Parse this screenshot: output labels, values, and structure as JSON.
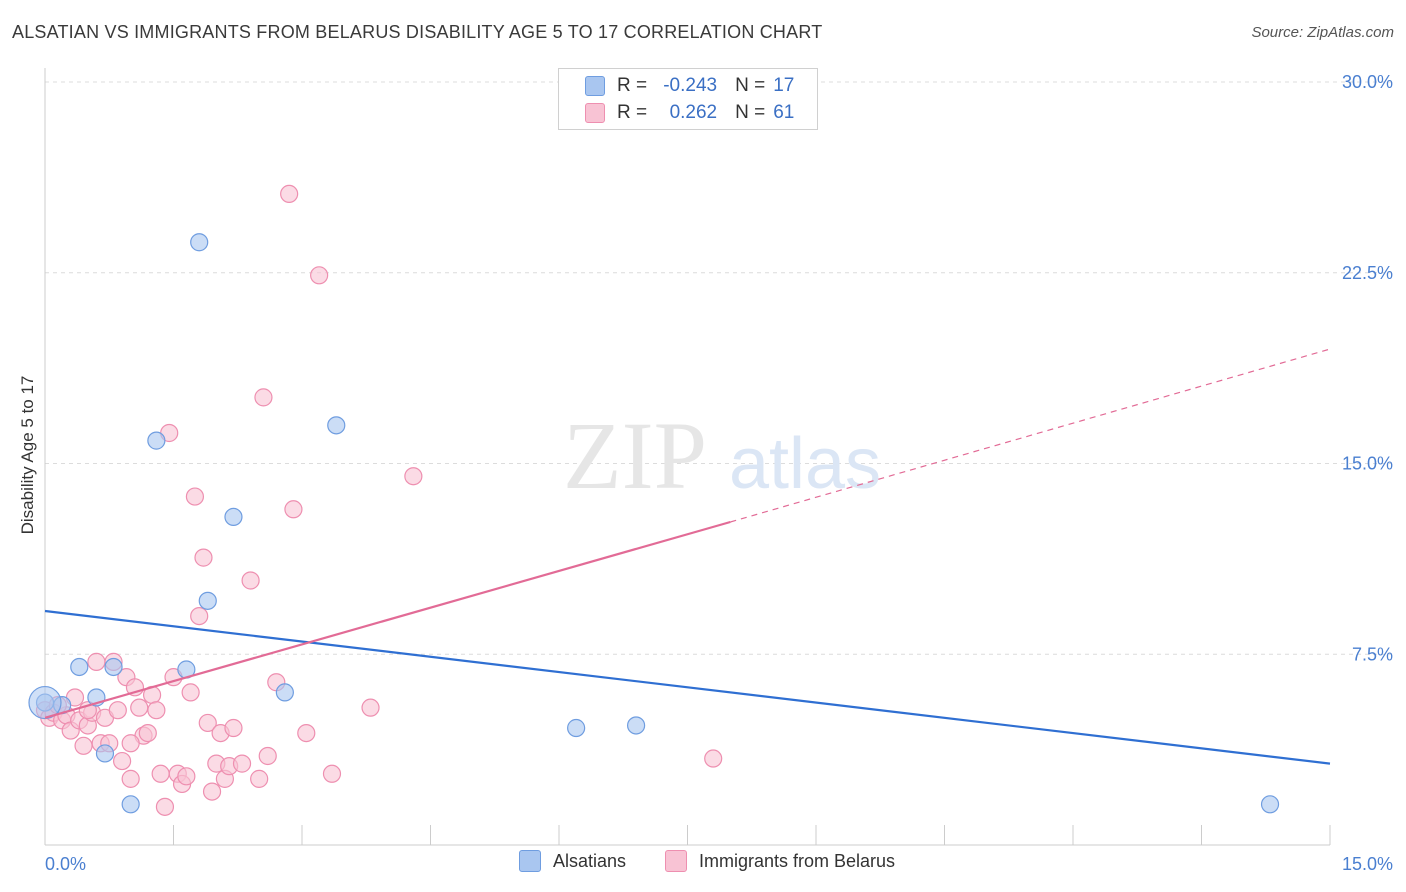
{
  "title": "ALSATIAN VS IMMIGRANTS FROM BELARUS DISABILITY AGE 5 TO 17 CORRELATION CHART",
  "source": "Source: ZipAtlas.com",
  "watermark": {
    "zip": "ZIP",
    "atlas": "atlas"
  },
  "stats": [
    {
      "r_label": "R =",
      "r_value": "-0.243",
      "n_label": "N =",
      "n_value": "17",
      "color": "#a9c6f0",
      "border": "#6f9de0"
    },
    {
      "r_label": "R =",
      "r_value": "0.262",
      "n_label": "N =",
      "n_value": "61",
      "color": "#f8c3d4",
      "border": "#ee8fb0"
    }
  ],
  "legend": [
    {
      "label": "Alsatians",
      "color": "#a9c6f0",
      "border": "#6f9de0"
    },
    {
      "label": "Immigrants from Belarus",
      "color": "#f8c3d4",
      "border": "#ee8fb0"
    }
  ],
  "chart_data": {
    "type": "scatter",
    "ylabel": "Disability Age 5 to 17",
    "xlim": [
      0,
      15
    ],
    "ylim": [
      0,
      30
    ],
    "x_tick_labels": [
      "0.0%",
      "15.0%"
    ],
    "y_ticks": [
      7.5,
      15,
      22.5,
      30
    ],
    "y_tick_labels": [
      "7.5%",
      "15.0%",
      "22.5%",
      "30.0%"
    ],
    "grid": "dashed horizontal",
    "series": [
      {
        "name": "Alsatians",
        "color": "#6f9de0",
        "fill": "#a9c6f0",
        "points": [
          [
            0.0,
            5.6
          ],
          [
            0.2,
            5.5
          ],
          [
            0.4,
            7.0
          ],
          [
            0.6,
            5.8
          ],
          [
            0.7,
            3.6
          ],
          [
            0.8,
            7.0
          ],
          [
            1.0,
            1.6
          ],
          [
            1.3,
            15.9
          ],
          [
            1.65,
            6.9
          ],
          [
            1.8,
            23.7
          ],
          [
            1.9,
            9.6
          ],
          [
            2.2,
            12.9
          ],
          [
            2.8,
            6.0
          ],
          [
            3.4,
            16.5
          ],
          [
            6.2,
            4.6
          ],
          [
            6.9,
            4.7
          ],
          [
            14.3,
            1.6
          ]
        ],
        "trend": {
          "x": [
            0,
            15
          ],
          "y": [
            9.2,
            3.2
          ],
          "style": "solid"
        }
      },
      {
        "name": "Immigrants from Belarus",
        "color": "#ee8fb0",
        "fill": "#f8c3d4",
        "points": [
          [
            0.0,
            5.3
          ],
          [
            0.05,
            5.0
          ],
          [
            0.1,
            5.2
          ],
          [
            0.2,
            4.9
          ],
          [
            0.25,
            5.1
          ],
          [
            0.3,
            4.5
          ],
          [
            0.35,
            5.8
          ],
          [
            0.4,
            4.9
          ],
          [
            0.45,
            3.9
          ],
          [
            0.5,
            4.7
          ],
          [
            0.55,
            5.2
          ],
          [
            0.6,
            7.2
          ],
          [
            0.65,
            4.0
          ],
          [
            0.7,
            5.0
          ],
          [
            0.75,
            4.0
          ],
          [
            0.8,
            7.2
          ],
          [
            0.85,
            5.3
          ],
          [
            0.9,
            3.3
          ],
          [
            0.95,
            6.6
          ],
          [
            1.0,
            2.6
          ],
          [
            1.05,
            6.2
          ],
          [
            1.1,
            5.4
          ],
          [
            1.15,
            4.3
          ],
          [
            1.2,
            4.4
          ],
          [
            1.25,
            5.9
          ],
          [
            1.3,
            5.3
          ],
          [
            1.35,
            2.8
          ],
          [
            1.4,
            1.5
          ],
          [
            1.45,
            16.2
          ],
          [
            1.5,
            6.6
          ],
          [
            1.55,
            2.8
          ],
          [
            1.6,
            2.4
          ],
          [
            1.65,
            2.7
          ],
          [
            1.7,
            6.0
          ],
          [
            1.75,
            13.7
          ],
          [
            1.8,
            9.0
          ],
          [
            1.85,
            11.3
          ],
          [
            1.9,
            4.8
          ],
          [
            1.95,
            2.1
          ],
          [
            2.0,
            3.2
          ],
          [
            2.05,
            4.4
          ],
          [
            2.1,
            2.6
          ],
          [
            2.15,
            3.1
          ],
          [
            2.2,
            4.6
          ],
          [
            2.3,
            3.2
          ],
          [
            2.4,
            10.4
          ],
          [
            2.5,
            2.6
          ],
          [
            2.55,
            17.6
          ],
          [
            2.6,
            3.5
          ],
          [
            2.7,
            6.4
          ],
          [
            2.85,
            25.6
          ],
          [
            2.9,
            13.2
          ],
          [
            3.05,
            4.4
          ],
          [
            3.2,
            22.4
          ],
          [
            3.35,
            2.8
          ],
          [
            3.8,
            5.4
          ],
          [
            4.3,
            14.5
          ],
          [
            7.8,
            3.4
          ],
          [
            0.15,
            5.5
          ],
          [
            1.0,
            4.0
          ],
          [
            0.5,
            5.3
          ]
        ],
        "trend": {
          "x": [
            0,
            8.0,
            15
          ],
          "y": [
            5.0,
            12.7,
            19.5
          ],
          "style": "solid-then-dashed"
        }
      }
    ]
  }
}
